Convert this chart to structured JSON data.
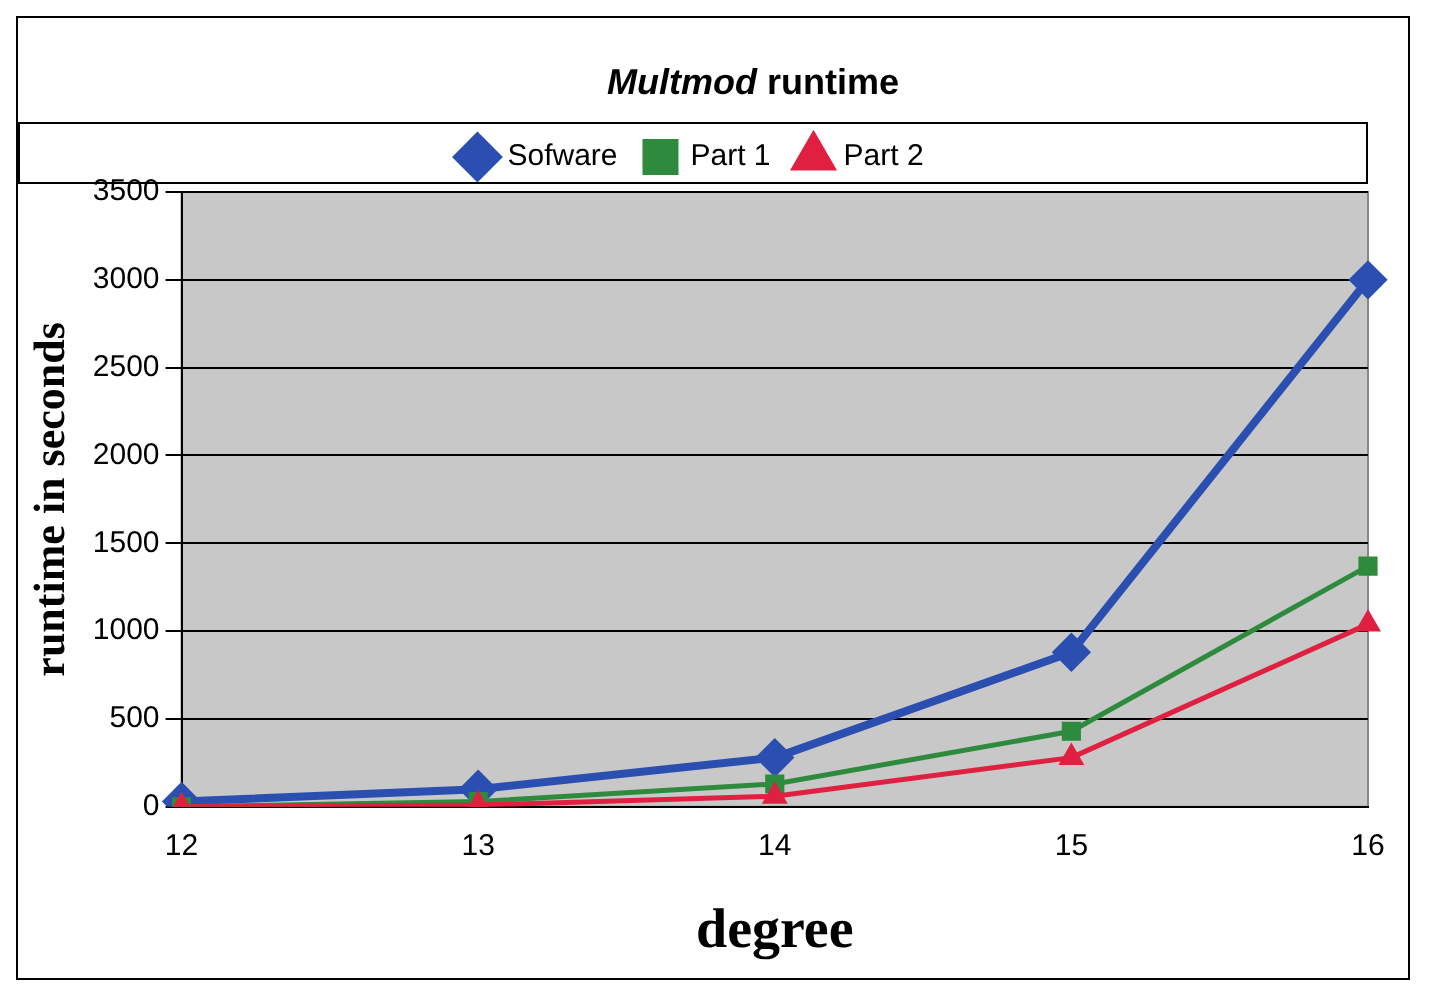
{
  "chart_data": {
    "type": "line",
    "title": "Multmod runtime",
    "xlabel": "degree",
    "ylabel": "runtime in seconds",
    "categories": [
      "12",
      "13",
      "14",
      "15",
      "16"
    ],
    "series": [
      {
        "name": "Sofware",
        "color": "#2a4fb0",
        "marker": "diamond",
        "values": [
          30,
          100,
          280,
          880,
          3000
        ]
      },
      {
        "name": "Part 1",
        "color": "#2e8b3e",
        "marker": "square",
        "values": [
          0,
          30,
          130,
          430,
          1370
        ]
      },
      {
        "name": "Part 2",
        "color": "#e02040",
        "marker": "triangle",
        "values": [
          0,
          10,
          60,
          280,
          1040
        ]
      }
    ],
    "ylim": [
      0,
      3500
    ],
    "yticks": [
      0,
      500,
      1000,
      1500,
      2000,
      2500,
      3000,
      3500
    ],
    "grid": "y",
    "legend": "top"
  }
}
